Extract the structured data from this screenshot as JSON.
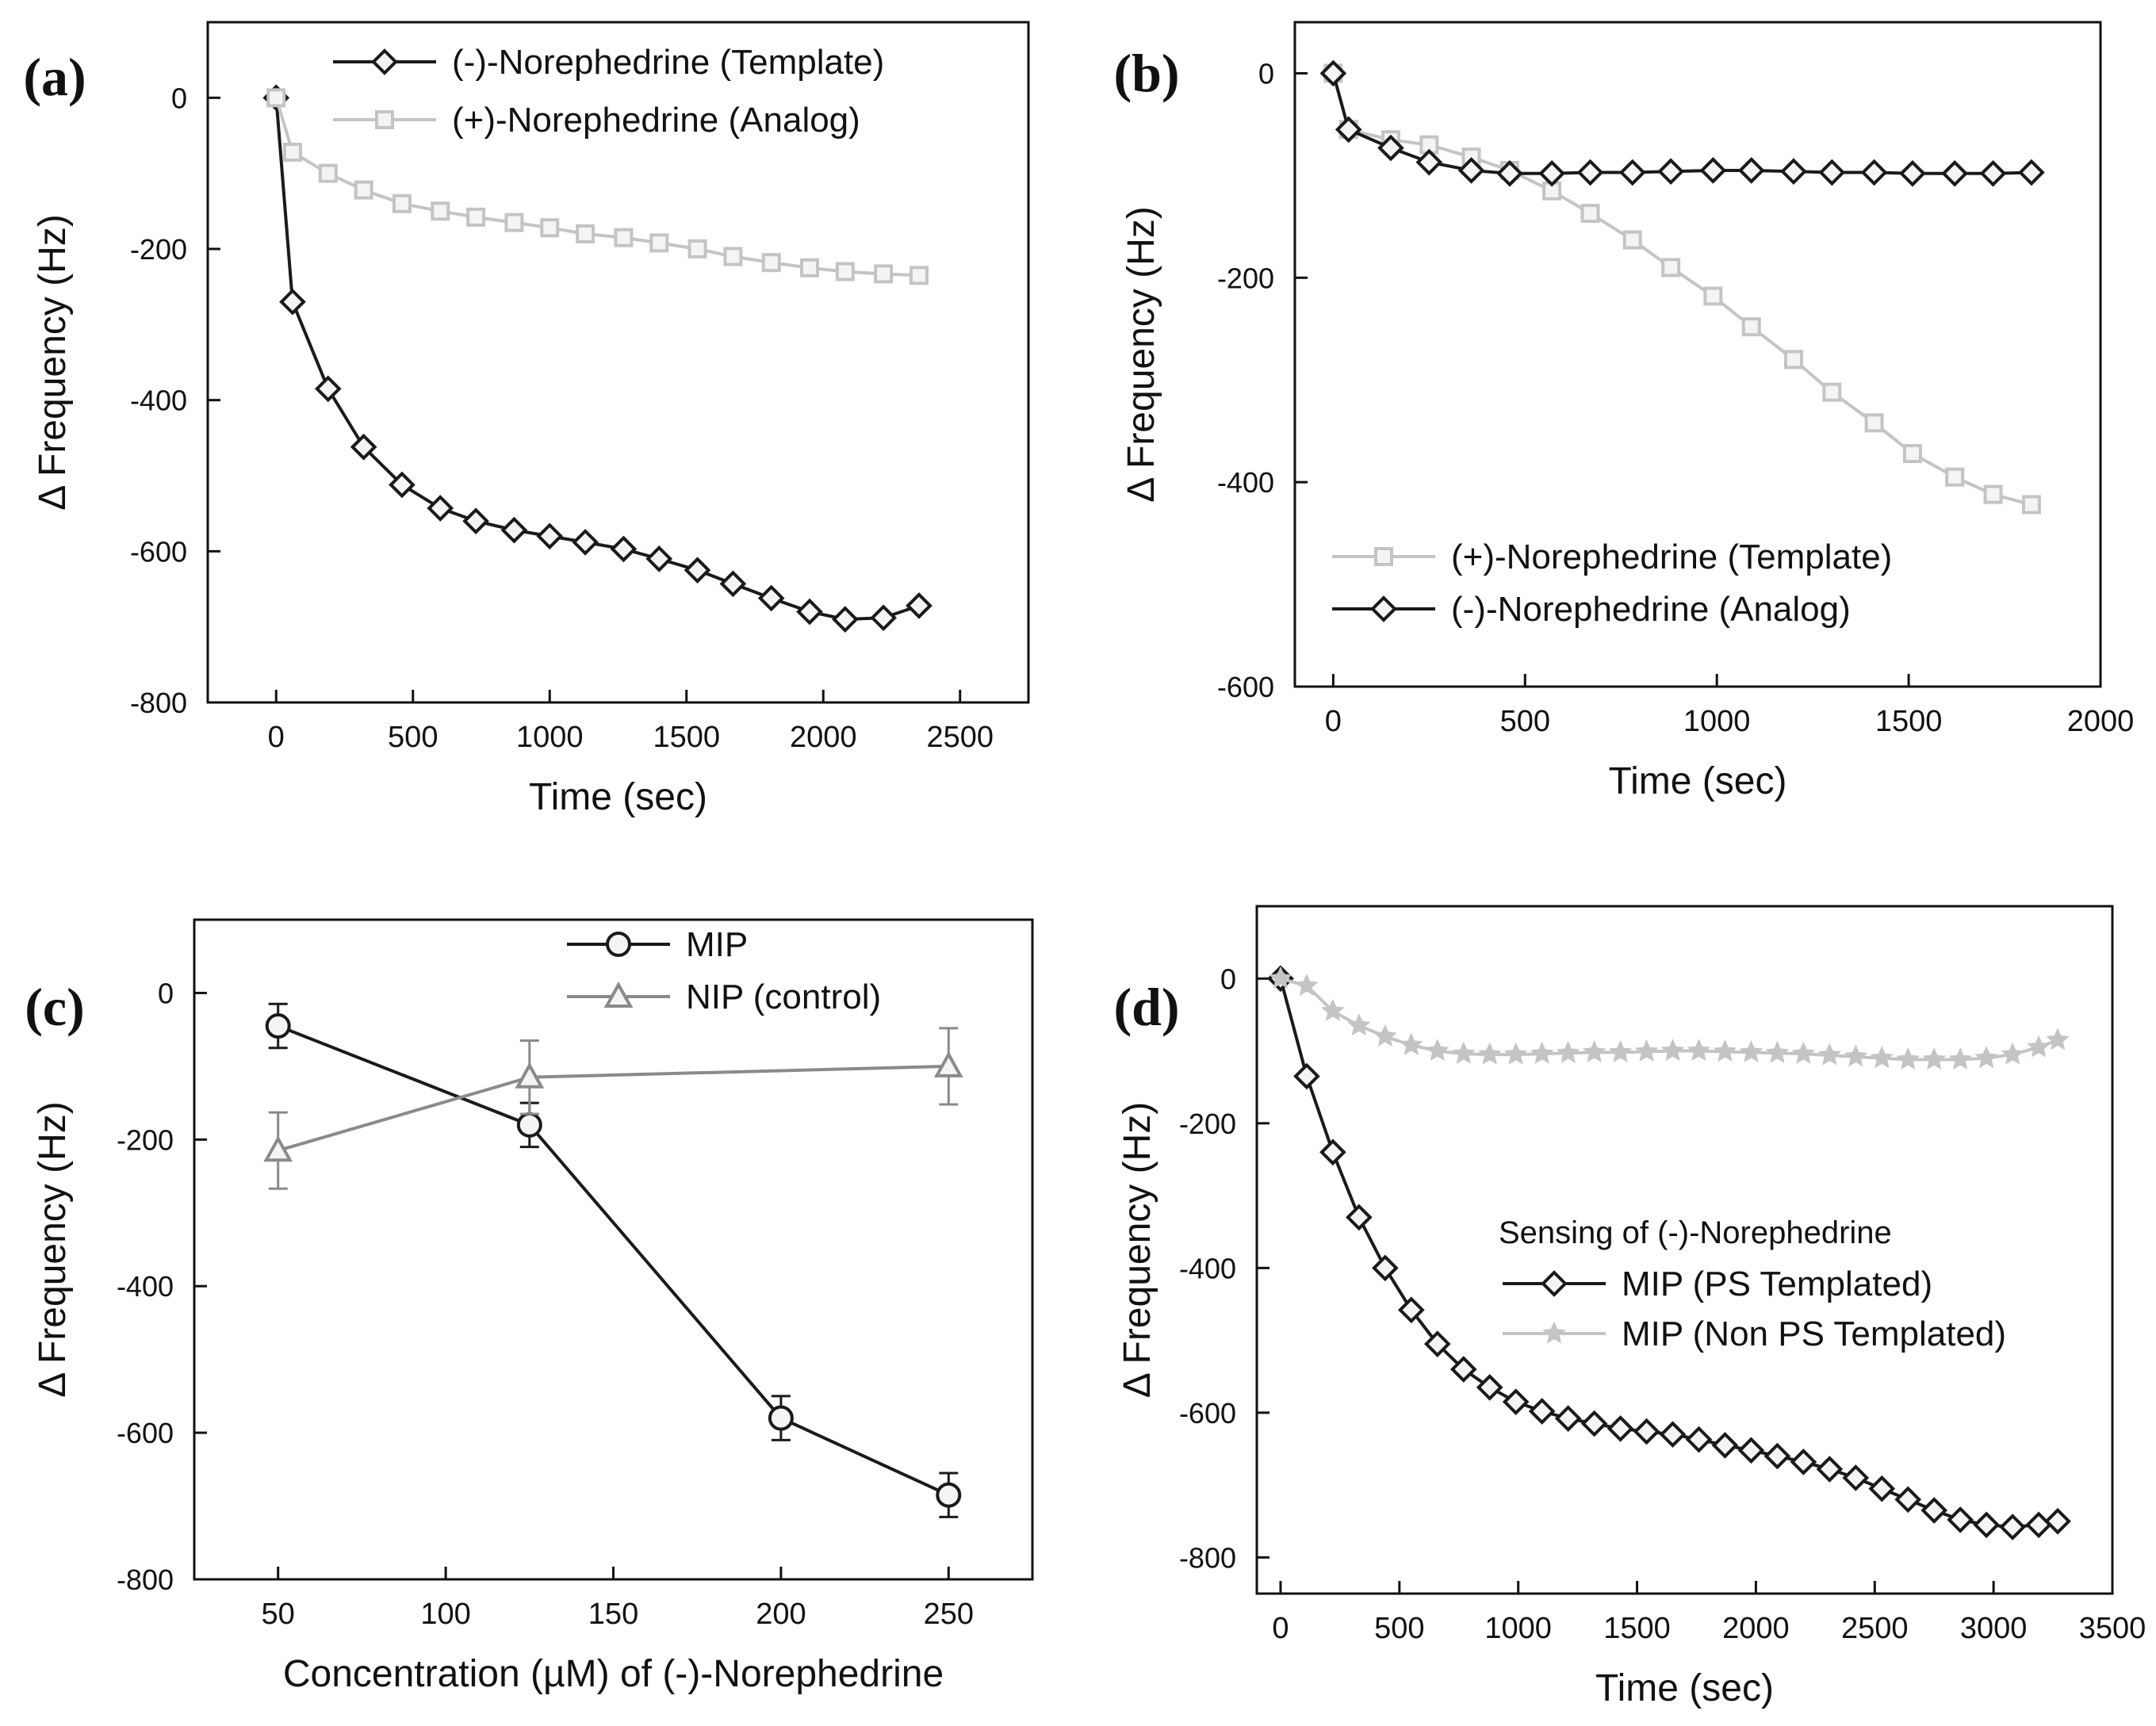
{
  "colors": {
    "dark": "#1a1a1a",
    "light": "#c4c4c4",
    "mid": "#8a8a8a",
    "axis": "#111111"
  },
  "chart_data": [
    {
      "panel": "(a)",
      "type": "line",
      "xlabel": "Time (sec)",
      "ylabel": "Δ Frequency (Hz)",
      "xlim": [
        -250,
        2750
      ],
      "ylim": [
        -800,
        100
      ],
      "xticks": [
        0,
        500,
        1000,
        1500,
        2000,
        2500
      ],
      "yticks": [
        0,
        -200,
        -400,
        -600,
        -800
      ],
      "legend_position": "top-right",
      "series": [
        {
          "name": "(-)-Norephedrine (Template)",
          "color": "dark",
          "marker": "diamond",
          "x": [
            0,
            60,
            190,
            320,
            460,
            600,
            730,
            870,
            1000,
            1130,
            1270,
            1400,
            1540,
            1670,
            1810,
            1950,
            2080,
            2220,
            2350
          ],
          "y": [
            0,
            -270,
            -385,
            -462,
            -512,
            -543,
            -560,
            -572,
            -580,
            -588,
            -597,
            -610,
            -625,
            -643,
            -662,
            -680,
            -690,
            -688,
            -672
          ]
        },
        {
          "name": "(+)-Norephedrine (Analog)",
          "color": "light",
          "marker": "square",
          "x": [
            0,
            60,
            190,
            320,
            460,
            600,
            730,
            870,
            1000,
            1130,
            1270,
            1400,
            1540,
            1670,
            1810,
            1950,
            2080,
            2220,
            2350
          ],
          "y": [
            0,
            -72,
            -100,
            -122,
            -140,
            -150,
            -158,
            -165,
            -172,
            -180,
            -185,
            -192,
            -200,
            -210,
            -218,
            -225,
            -230,
            -233,
            -235
          ]
        }
      ]
    },
    {
      "panel": "(b)",
      "type": "line",
      "xlabel": "Time (sec)",
      "ylabel": "Δ Frequency (Hz)",
      "xlim": [
        -100,
        2000
      ],
      "ylim": [
        -600,
        50
      ],
      "xticks": [
        0,
        500,
        1000,
        1500,
        2000
      ],
      "yticks": [
        0,
        -200,
        -400,
        -600
      ],
      "legend_position": "bottom-left",
      "series": [
        {
          "name": "(+)-Norephedrine (Template)",
          "color": "light",
          "marker": "square",
          "x": [
            0,
            40,
            150,
            250,
            360,
            460,
            570,
            670,
            780,
            880,
            990,
            1090,
            1200,
            1300,
            1410,
            1510,
            1620,
            1720,
            1820
          ],
          "y": [
            0,
            -55,
            -65,
            -70,
            -82,
            -95,
            -115,
            -137,
            -163,
            -190,
            -218,
            -248,
            -280,
            -312,
            -342,
            -372,
            -395,
            -412,
            -422
          ]
        },
        {
          "name": "(-)-Norephedrine (Analog)",
          "color": "dark",
          "marker": "diamond",
          "x": [
            0,
            40,
            150,
            250,
            360,
            460,
            570,
            670,
            780,
            880,
            990,
            1090,
            1200,
            1300,
            1410,
            1510,
            1620,
            1720,
            1820
          ],
          "y": [
            0,
            -55,
            -73,
            -87,
            -95,
            -98,
            -98,
            -97,
            -97,
            -96,
            -95,
            -95,
            -96,
            -97,
            -97,
            -98,
            -98,
            -98,
            -97
          ]
        }
      ]
    },
    {
      "panel": "(c)",
      "type": "line",
      "xlabel": "Concentration (µM) of (-)-Norephedrine",
      "ylabel": "Δ Frequency (Hz)",
      "xlim": [
        25,
        275
      ],
      "ylim": [
        -800,
        100
      ],
      "xticks": [
        50,
        100,
        150,
        200,
        250
      ],
      "yticks": [
        0,
        -200,
        -400,
        -600,
        -800
      ],
      "legend_position": "top-center",
      "series": [
        {
          "name": "MIP",
          "color": "dark",
          "marker": "circle",
          "x": [
            50,
            125,
            200,
            250
          ],
          "y": [
            -45,
            -180,
            -580,
            -685
          ],
          "err": [
            30,
            30,
            30,
            30
          ]
        },
        {
          "name": "NIP (control)",
          "color": "mid",
          "marker": "triangle",
          "x": [
            50,
            125,
            250
          ],
          "y": [
            -215,
            -115,
            -100
          ],
          "err": [
            52,
            50,
            52
          ]
        }
      ]
    },
    {
      "panel": "(d)",
      "type": "line",
      "xlabel": "Time (sec)",
      "ylabel": "Δ Frequency (Hz)",
      "xlim": [
        -100,
        3500
      ],
      "ylim": [
        -850,
        100
      ],
      "xticks": [
        0,
        500,
        1000,
        1500,
        2000,
        2500,
        3000,
        3500
      ],
      "yticks": [
        0,
        -200,
        -400,
        -600,
        -800
      ],
      "legend_title": "Sensing of (-)-Norephedrine",
      "legend_position": "center-right",
      "series": [
        {
          "name": "MIP (PS Templated)",
          "color": "dark",
          "marker": "diamond",
          "x": [
            0,
            110,
            220,
            330,
            440,
            550,
            660,
            770,
            880,
            990,
            1100,
            1210,
            1320,
            1430,
            1540,
            1650,
            1760,
            1870,
            1980,
            2090,
            2200,
            2310,
            2420,
            2530,
            2640,
            2750,
            2860,
            2970,
            3080,
            3190,
            3270
          ],
          "y": [
            0,
            -135,
            -240,
            -330,
            -400,
            -458,
            -505,
            -540,
            -565,
            -585,
            -598,
            -608,
            -615,
            -622,
            -626,
            -630,
            -637,
            -645,
            -652,
            -660,
            -668,
            -678,
            -690,
            -705,
            -720,
            -735,
            -748,
            -755,
            -758,
            -755,
            -750
          ]
        },
        {
          "name": "MIP (Non PS Templated)",
          "color": "light",
          "marker": "star",
          "x": [
            0,
            110,
            220,
            330,
            440,
            550,
            660,
            770,
            880,
            990,
            1100,
            1210,
            1320,
            1430,
            1540,
            1650,
            1760,
            1870,
            1980,
            2090,
            2200,
            2310,
            2420,
            2530,
            2640,
            2750,
            2860,
            2970,
            3080,
            3190,
            3270
          ],
          "y": [
            0,
            -10,
            -45,
            -65,
            -80,
            -92,
            -100,
            -104,
            -105,
            -105,
            -104,
            -103,
            -102,
            -102,
            -101,
            -100,
            -100,
            -101,
            -102,
            -103,
            -104,
            -106,
            -108,
            -110,
            -112,
            -112,
            -112,
            -110,
            -105,
            -95,
            -85
          ]
        }
      ]
    }
  ]
}
